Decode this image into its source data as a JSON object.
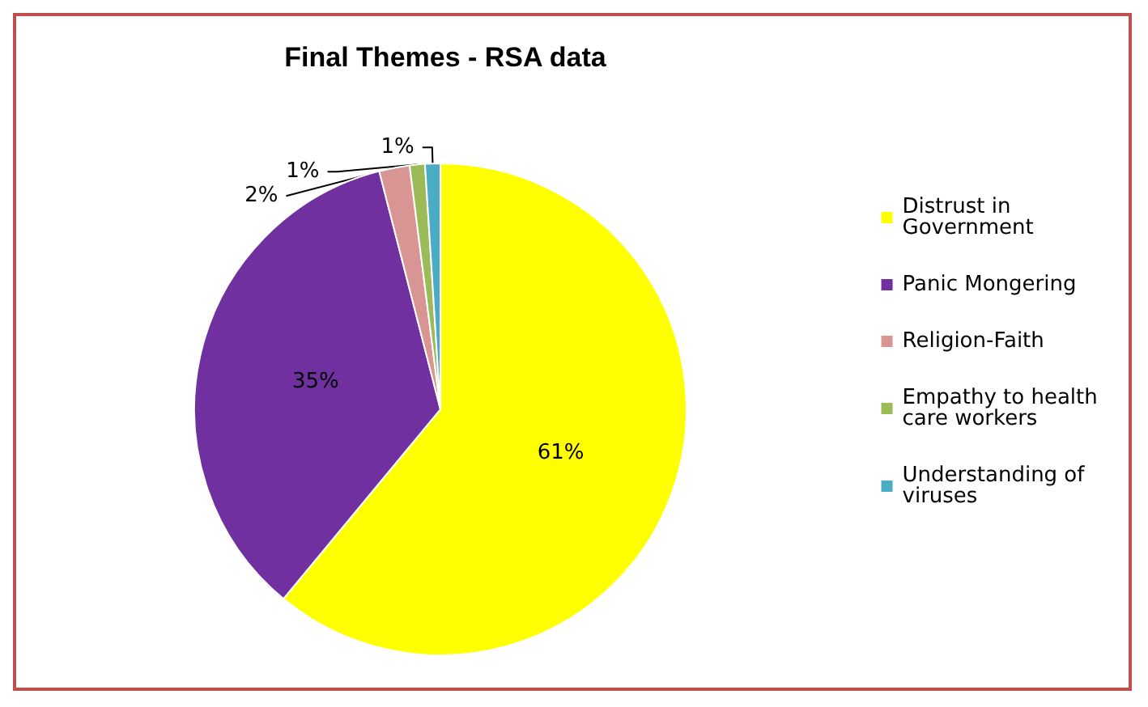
{
  "chart_data": {
    "type": "pie",
    "title": "Final Themes - RSA data",
    "categories": [
      "Distrust in Government",
      "Panic Mongering",
      "Religion-Faith",
      "Empathy to health care workers",
      "Understanding of viruses"
    ],
    "values": [
      61,
      35,
      2,
      1,
      1
    ],
    "value_labels": [
      "61%",
      "35%",
      "2%",
      "1%",
      "1%"
    ],
    "colors": [
      "#ffff00",
      "#7030a0",
      "#d99594",
      "#9bbb59",
      "#4bacc6"
    ],
    "legend": "right"
  }
}
